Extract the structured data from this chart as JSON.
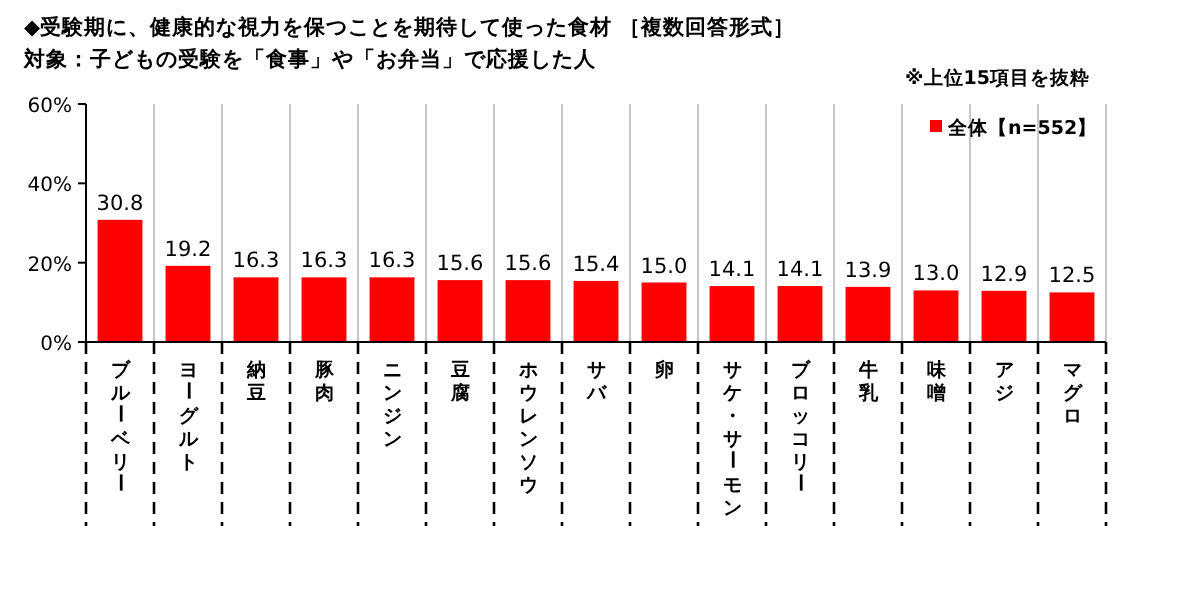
{
  "chart_data": {
    "type": "bar",
    "title": "◆受験期に、健康的な視力を保つことを期待して使った食材 ［複数回答形式］",
    "subtitle": "対象：子どもの受験を「食事」や「お弁当」で応援した人",
    "annotations": [
      "※上位15項目を抜粋"
    ],
    "categories": [
      "ブルーベリー",
      "ヨーグルト",
      "納豆",
      "豚肉",
      "ニンジン",
      "豆腐",
      "ホウレンソウ",
      "サバ",
      "卵",
      "サケ・サーモン",
      "ブロッコリー",
      "牛乳",
      "味噌",
      "アジ",
      "マグロ"
    ],
    "series": [
      {
        "name": "全体【n=552】",
        "color": "#ff0000",
        "values": [
          30.8,
          19.2,
          16.3,
          16.3,
          16.3,
          15.6,
          15.6,
          15.4,
          15.0,
          14.1,
          14.1,
          13.9,
          13.0,
          12.9,
          12.5
        ],
        "value_labels": [
          "30.8",
          "19.2",
          "16.3",
          "16.3",
          "16.3",
          "15.6",
          "15.6",
          "15.4",
          "15.0",
          "14.1",
          "14.1",
          "13.9",
          "13.0",
          "12.9",
          "12.5"
        ]
      }
    ],
    "ylim": [
      0,
      60
    ],
    "yticks": [
      {
        "value": 0,
        "label": "0%"
      },
      {
        "value": 20,
        "label": "20%"
      },
      {
        "value": 40,
        "label": "40%"
      },
      {
        "value": 60,
        "label": "60%"
      }
    ],
    "grid": "x",
    "legend": "top right"
  }
}
